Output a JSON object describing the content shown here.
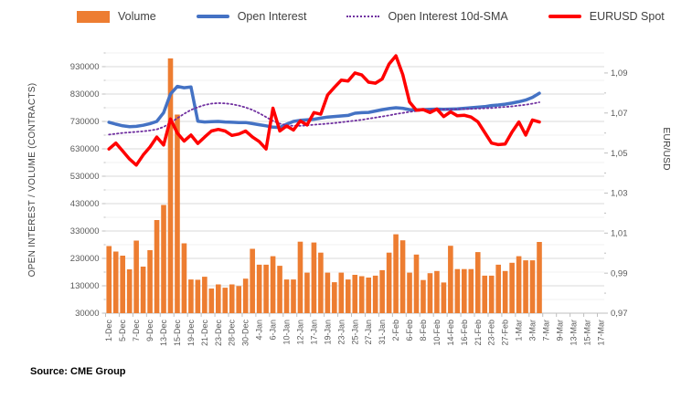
{
  "source_note": "Source: CME Group",
  "legend": {
    "items": [
      {
        "label": "Volume",
        "type": "bar",
        "color": "#ED7D31"
      },
      {
        "label": "Open Interest",
        "type": "line",
        "color": "#4472C4"
      },
      {
        "label": "Open Interest 10d-SMA",
        "type": "dotted",
        "color": "#7030A0"
      },
      {
        "label": "EURUSD Spot",
        "type": "line",
        "color": "#FF0000"
      }
    ]
  },
  "chart_data": {
    "type": "bar",
    "subtype": "combo-bar-line-dual-axis",
    "grid": "on",
    "legend_position": "top",
    "y_left": {
      "title": "OPEN INTEREST / VOLUME (CONTRACTS)",
      "min": 30000,
      "max": 980000,
      "major_unit": 100000,
      "minor_unit": 50000,
      "tick_labels": [
        "930000",
        "830000",
        "730000",
        "630000",
        "530000",
        "430000",
        "330000",
        "230000",
        "130000",
        "30000"
      ],
      "tick_values": [
        930000,
        830000,
        730000,
        630000,
        530000,
        430000,
        330000,
        230000,
        130000,
        30000
      ]
    },
    "y_right": {
      "title": "EUR/USD",
      "min": 0.97,
      "max": 1.1,
      "major_unit": 0.02,
      "tick_labels": [
        "1,09",
        "1,07",
        "1,05",
        "1,03",
        "1,01",
        "0,99",
        "0,97"
      ],
      "tick_values": [
        1.09,
        1.07,
        1.05,
        1.03,
        1.01,
        0.99,
        0.97
      ]
    },
    "axis_slots": [
      "1-Dec",
      "2-Dec",
      "5-Dec",
      "6-Dec",
      "7-Dec",
      "8-Dec",
      "9-Dec",
      "12-Dec",
      "13-Dec",
      "14-Dec",
      "15-Dec",
      "16-Dec",
      "19-Dec",
      "20-Dec",
      "21-Dec",
      "22-Dec",
      "23-Dec",
      "27-Dec",
      "28-Dec",
      "29-Dec",
      "30-Dec",
      "3-Jan",
      "4-Jan",
      "5-Jan",
      "6-Jan",
      "9-Jan",
      "10-Jan",
      "11-Jan",
      "12-Jan",
      "13-Jan",
      "17-Jan",
      "18-Jan",
      "19-Jan",
      "20-Jan",
      "23-Jan",
      "24-Jan",
      "25-Jan",
      "26-Jan",
      "27-Jan",
      "30-Jan",
      "31-Jan",
      "1-Feb",
      "2-Feb",
      "3-Feb",
      "6-Feb",
      "7-Feb",
      "8-Feb",
      "9-Feb",
      "10-Feb",
      "13-Feb",
      "14-Feb",
      "15-Feb",
      "16-Feb",
      "17-Feb",
      "21-Feb",
      "22-Feb",
      "23-Feb",
      "24-Feb",
      "27-Feb",
      "28-Feb",
      "1-Mar",
      "2-Mar",
      "3-Mar",
      "6-Mar",
      "7-Mar",
      "8-Mar",
      "9-Mar",
      "10-Mar",
      "13-Mar",
      "14-Mar",
      "15-Mar",
      "16-Mar",
      "17-Mar"
    ],
    "x_label_every": 2,
    "visible_x_tick_labels": [
      "1-Dec",
      "5-Dec",
      "7-Dec",
      "9-Dec",
      "13-Dec",
      "15-Dec",
      "19-Dec",
      "21-Dec",
      "23-Dec",
      "28-Dec",
      "30-Dec",
      "4-Jan",
      "6-Jan",
      "10-Jan",
      "12-Jan",
      "17-Jan",
      "19-Jan",
      "23-Jan",
      "25-Jan",
      "27-Jan",
      "31-Jan",
      "2-Feb",
      "6-Feb",
      "8-Feb",
      "10-Feb",
      "14-Feb",
      "16-Feb",
      "21-Feb",
      "23-Feb",
      "27-Feb",
      "1-Mar",
      "3-Mar",
      "7-Mar",
      "9-Mar",
      "13-Mar",
      "15-Mar",
      "17-Mar"
    ],
    "categories": [
      "1-Dec",
      "2-Dec",
      "5-Dec",
      "6-Dec",
      "7-Dec",
      "8-Dec",
      "9-Dec",
      "12-Dec",
      "13-Dec",
      "14-Dec",
      "15-Dec",
      "16-Dec",
      "19-Dec",
      "20-Dec",
      "21-Dec",
      "22-Dec",
      "23-Dec",
      "27-Dec",
      "28-Dec",
      "29-Dec",
      "30-Dec",
      "3-Jan",
      "4-Jan",
      "5-Jan",
      "6-Jan",
      "9-Jan",
      "10-Jan",
      "11-Jan",
      "12-Jan",
      "13-Jan",
      "17-Jan",
      "18-Jan",
      "19-Jan",
      "20-Jan",
      "23-Jan",
      "24-Jan",
      "25-Jan",
      "26-Jan",
      "27-Jan",
      "30-Jan",
      "31-Jan",
      "1-Feb",
      "2-Feb",
      "3-Feb",
      "6-Feb",
      "7-Feb",
      "8-Feb",
      "9-Feb",
      "10-Feb",
      "13-Feb",
      "14-Feb",
      "15-Feb",
      "16-Feb",
      "17-Feb",
      "21-Feb",
      "22-Feb",
      "23-Feb",
      "24-Feb",
      "27-Feb",
      "28-Feb",
      "1-Mar",
      "2-Mar",
      "3-Mar",
      "6-Mar"
    ],
    "series": [
      {
        "name": "Volume",
        "type": "bar",
        "axis": "left",
        "color": "#ED7D31",
        "values": [
          275000,
          255000,
          240000,
          190000,
          295000,
          200000,
          260000,
          370000,
          425000,
          960000,
          755000,
          285000,
          153000,
          152000,
          163000,
          120000,
          135000,
          123000,
          135000,
          129000,
          156000,
          265000,
          207000,
          207000,
          238000,
          203000,
          153000,
          153000,
          291000,
          178000,
          288000,
          251000,
          178000,
          143000,
          178000,
          153000,
          170000,
          165000,
          160000,
          167000,
          187000,
          251000,
          318000,
          296000,
          178000,
          244000,
          151000,
          176000,
          184000,
          142000,
          276000,
          191000,
          191000,
          191000,
          253000,
          167000,
          167000,
          207000,
          184000,
          214000,
          238000,
          223000,
          223000,
          290000
        ]
      },
      {
        "name": "Open Interest",
        "type": "line",
        "axis": "left",
        "color": "#4472C4",
        "values": [
          727000,
          720000,
          714000,
          711000,
          712000,
          716000,
          722000,
          730000,
          762000,
          830000,
          858000,
          853000,
          856000,
          731000,
          728000,
          729000,
          730000,
          728000,
          727000,
          726000,
          726000,
          722000,
          718000,
          714000,
          709000,
          708000,
          720000,
          730000,
          734000,
          736000,
          738000,
          742000,
          746000,
          748000,
          750000,
          752000,
          760000,
          762000,
          763000,
          768000,
          773000,
          777000,
          780000,
          778000,
          773000,
          772000,
          773000,
          774000,
          775000,
          774000,
          775000,
          776000,
          778000,
          780000,
          782000,
          784000,
          788000,
          790000,
          793000,
          797000,
          802000,
          808000,
          818000,
          833000
        ]
      },
      {
        "name": "Open Interest 10d-SMA",
        "type": "line_dotted",
        "axis": "left",
        "color": "#7030A0",
        "values": [
          682000,
          685000,
          688000,
          690000,
          692000,
          694000,
          697000,
          701000,
          710000,
          725000,
          742000,
          758000,
          772000,
          782000,
          790000,
          795000,
          797000,
          796000,
          793000,
          788000,
          781000,
          772000,
          760000,
          746000,
          732000,
          722000,
          716000,
          714000,
          714000,
          716000,
          718000,
          720000,
          722000,
          724000,
          727000,
          730000,
          733000,
          736000,
          740000,
          744000,
          748000,
          752000,
          757000,
          761000,
          765000,
          768000,
          770000,
          772000,
          773000,
          774000,
          774000,
          775000,
          775000,
          776000,
          777000,
          778000,
          779000,
          781000,
          783000,
          785000,
          788000,
          791000,
          795000,
          800000
        ]
      },
      {
        "name": "EURUSD Spot",
        "type": "line",
        "axis": "right",
        "color": "#FF0000",
        "values": [
          1.052,
          1.055,
          1.051,
          1.047,
          1.044,
          1.049,
          1.053,
          1.058,
          1.054,
          1.067,
          1.06,
          1.056,
          1.059,
          1.0548,
          1.058,
          1.061,
          1.0618,
          1.061,
          1.0588,
          1.0595,
          1.061,
          1.058,
          1.0557,
          1.052,
          1.0724,
          1.061,
          1.0635,
          1.0615,
          1.066,
          1.064,
          1.0702,
          1.0694,
          1.079,
          1.0828,
          1.0864,
          1.086,
          1.09,
          1.089,
          1.0854,
          1.0849,
          1.087,
          1.0945,
          1.0986,
          1.0892,
          1.0755,
          1.0714,
          1.0717,
          1.0702,
          1.072,
          1.0682,
          1.0706,
          1.0686,
          1.0689,
          1.068,
          1.0656,
          1.0603,
          1.055,
          1.0542,
          1.0545,
          1.0605,
          1.0655,
          1.059,
          1.0665,
          1.0655
        ]
      }
    ]
  },
  "colors": {
    "grid_major": "#D9D9D9",
    "grid_minor": "#F2F2F2",
    "axis_line": "#BFBFBF",
    "tick_text": "#595959",
    "axis_title_text": "#404040"
  }
}
